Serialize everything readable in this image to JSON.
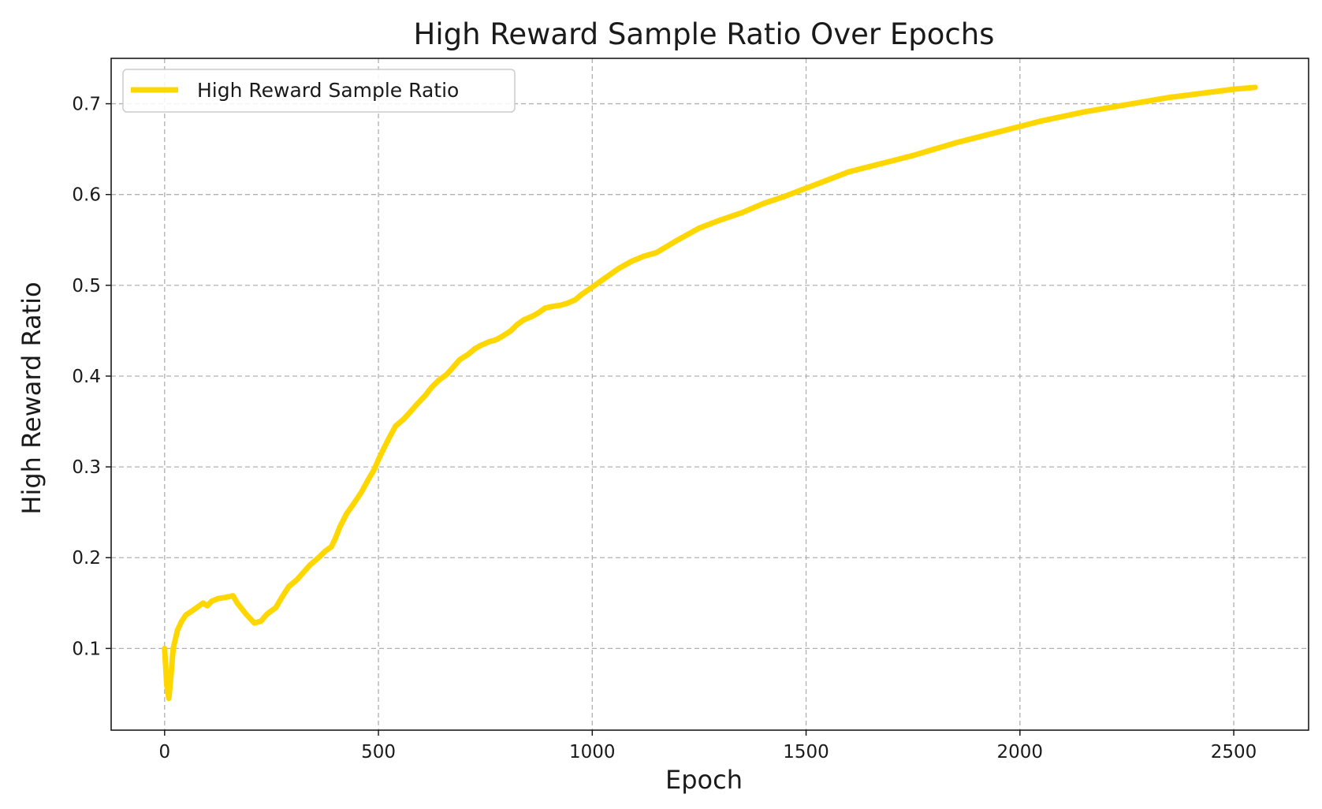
{
  "chart_data": {
    "type": "line",
    "title": "High Reward Sample Ratio Over Epochs",
    "xlabel": "Epoch",
    "ylabel": "High Reward Ratio",
    "xlim": [
      -125,
      2675
    ],
    "ylim": [
      0.01,
      0.75
    ],
    "grid": true,
    "legend_position": "top-left",
    "x_ticks": [
      0,
      500,
      1000,
      1500,
      2000,
      2500
    ],
    "y_ticks": [
      0.1,
      0.2,
      0.3,
      0.4,
      0.5,
      0.6,
      0.7
    ],
    "x_tick_labels": [
      "0",
      "500",
      "1000",
      "1500",
      "2000",
      "2500"
    ],
    "y_tick_labels": [
      "0.1",
      "0.2",
      "0.3",
      "0.4",
      "0.5",
      "0.6",
      "0.7"
    ],
    "series": [
      {
        "name": "High Reward Sample Ratio",
        "color": "#FFD700",
        "x": [
          0,
          5,
          10,
          15,
          20,
          25,
          30,
          40,
          50,
          60,
          75,
          90,
          100,
          110,
          125,
          140,
          160,
          170,
          190,
          210,
          225,
          240,
          260,
          275,
          290,
          310,
          325,
          340,
          360,
          375,
          390,
          400,
          410,
          425,
          440,
          460,
          475,
          490,
          500,
          510,
          525,
          540,
          560,
          575,
          590,
          610,
          625,
          640,
          660,
          675,
          690,
          710,
          725,
          740,
          760,
          775,
          790,
          810,
          825,
          840,
          860,
          875,
          890,
          910,
          925,
          940,
          960,
          975,
          1000,
          1030,
          1060,
          1090,
          1120,
          1150,
          1200,
          1250,
          1300,
          1350,
          1400,
          1450,
          1500,
          1550,
          1600,
          1650,
          1700,
          1750,
          1800,
          1850,
          1900,
          1950,
          2000,
          2050,
          2100,
          2150,
          2200,
          2250,
          2300,
          2350,
          2400,
          2450,
          2500,
          2550
        ],
        "values": [
          0.1,
          0.06,
          0.045,
          0.07,
          0.1,
          0.11,
          0.12,
          0.13,
          0.137,
          0.14,
          0.145,
          0.15,
          0.147,
          0.152,
          0.155,
          0.156,
          0.158,
          0.15,
          0.138,
          0.128,
          0.13,
          0.138,
          0.145,
          0.157,
          0.168,
          0.176,
          0.184,
          0.192,
          0.2,
          0.207,
          0.212,
          0.222,
          0.234,
          0.248,
          0.258,
          0.272,
          0.285,
          0.297,
          0.308,
          0.318,
          0.332,
          0.345,
          0.353,
          0.361,
          0.369,
          0.379,
          0.388,
          0.395,
          0.402,
          0.41,
          0.418,
          0.424,
          0.43,
          0.434,
          0.438,
          0.44,
          0.444,
          0.45,
          0.457,
          0.462,
          0.466,
          0.47,
          0.475,
          0.477,
          0.478,
          0.48,
          0.484,
          0.49,
          0.498,
          0.508,
          0.518,
          0.526,
          0.532,
          0.536,
          0.55,
          0.563,
          0.572,
          0.58,
          0.59,
          0.598,
          0.607,
          0.616,
          0.625,
          0.631,
          0.637,
          0.643,
          0.65,
          0.657,
          0.663,
          0.669,
          0.675,
          0.681,
          0.686,
          0.691,
          0.695,
          0.699,
          0.703,
          0.707,
          0.71,
          0.713,
          0.716,
          0.718
        ]
      }
    ]
  }
}
